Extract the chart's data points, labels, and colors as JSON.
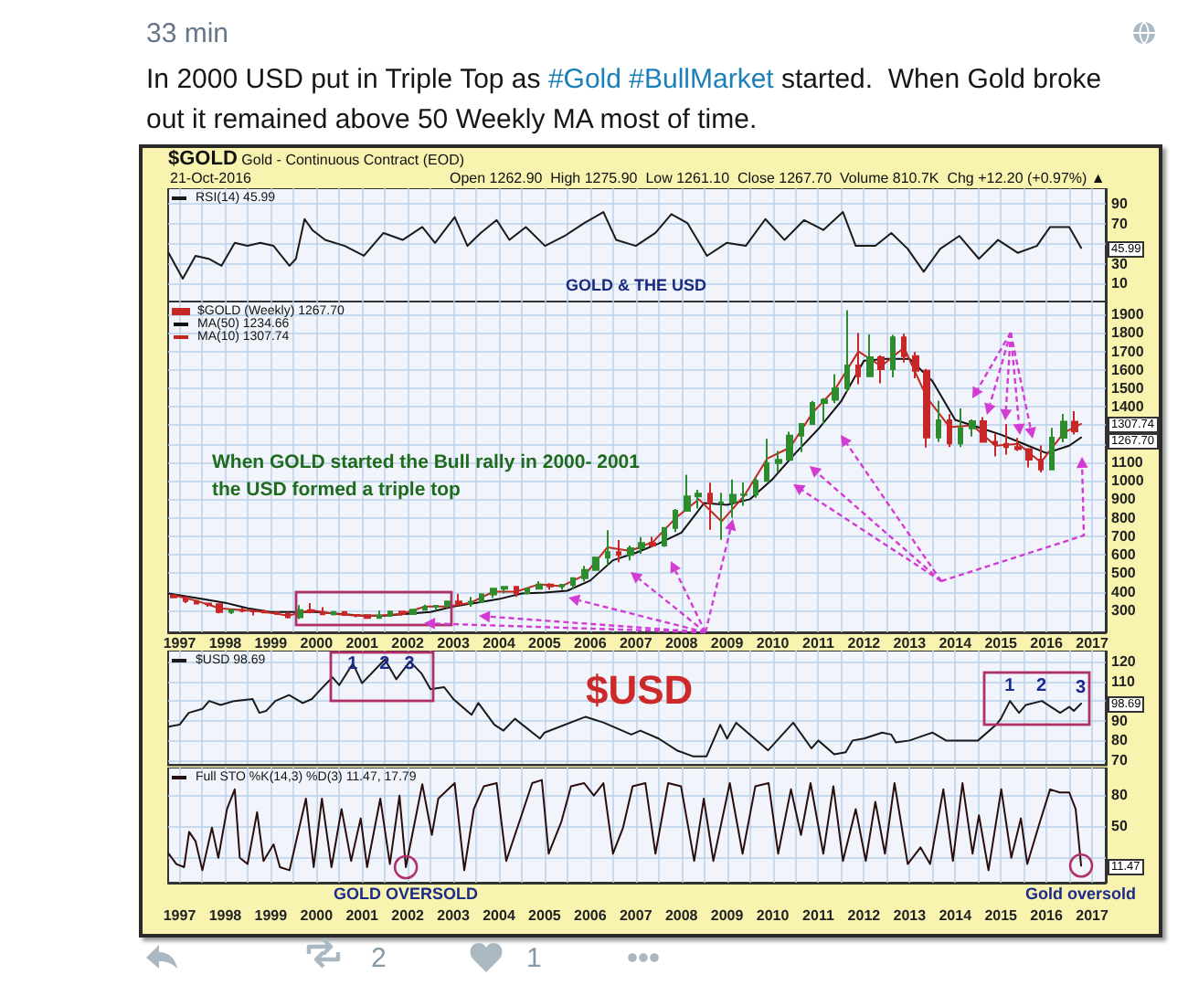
{
  "chart_data": [
    {
      "type": "line",
      "title": "In 2000 USD put in Triple Top as #Gold #BullMarket started.  When Gold broke out it remained above 50 Weekly MA most of time.",
      "subtitle": "$GOLD Gold - Continuous Contract (EOD)",
      "annotations": [
        "33 min",
        "21-Oct-2016",
        "Open 1262.90  High 1275.90  Low 1261.10  Close 1267.70  Volume 810.7K  Chg +12.20 (+0.97%) ▲",
        "GOLD & THE USD",
        "2",
        "1",
        "45.99"
      ],
      "series": [
        {
          "name": "RSI(14) 45.99",
          "color": "#1a1a1a",
          "x": [
            1996.76,
            1997.07,
            1997.35,
            1997.64,
            1997.92,
            1998.21,
            1998.49,
            1998.77,
            1999.06,
            1999.41,
            1999.55,
            1999.74,
            1999.91,
            2000.19,
            2000.62,
            2001.04,
            2001.47,
            2001.89,
            2002.32,
            2002.6,
            2003.03,
            2003.31,
            2003.6,
            2003.95,
            2004.23,
            2004.59,
            2005.01,
            2005.44,
            2005.87,
            2006.29,
            2006.57,
            2007.0,
            2007.43,
            2007.78,
            2008.13,
            2008.56,
            2008.99,
            2009.41,
            2009.84,
            2010.26,
            2010.69,
            2011.11,
            2011.54,
            2011.82,
            2012.25,
            2012.6,
            2012.96,
            2013.31,
            2013.67,
            2014.09,
            2014.52,
            2014.94,
            2015.37,
            2015.79,
            2016.08,
            2016.5,
            2016.76
          ],
          "values": [
            41,
            15,
            38,
            35,
            28,
            51,
            48,
            51,
            48,
            28,
            35,
            75,
            64,
            54,
            48,
            38,
            61,
            54,
            67,
            51,
            77,
            48,
            61,
            74,
            54,
            67,
            48,
            58,
            71,
            82,
            54,
            48,
            61,
            80,
            71,
            38,
            51,
            48,
            75,
            54,
            74,
            64,
            82,
            48,
            48,
            61,
            45,
            22,
            45,
            58,
            35,
            54,
            41,
            48,
            67,
            67,
            46
          ]
        }
      ],
      "xlim": [
        1996.75,
        2017.3
      ],
      "xticks": [
        1997,
        {
          "value": 1997.5,
          "label": null
        },
        1998,
        {
          "value": 1998.5,
          "label": null
        },
        1999,
        {
          "value": 1999.5,
          "label": null
        },
        2000,
        {
          "value": 2000.5,
          "label": null
        },
        2001,
        {
          "value": 2001.5,
          "label": null
        },
        2002,
        {
          "value": 2002.5,
          "label": null
        },
        2003,
        {
          "value": 2003.5,
          "label": null
        },
        2004,
        {
          "value": 2004.5,
          "label": null
        },
        2005,
        {
          "value": 2005.5,
          "label": null
        },
        2006,
        {
          "value": 2006.5,
          "label": null
        },
        2007,
        {
          "value": 2007.5,
          "label": null
        },
        2008,
        {
          "value": 2008.5,
          "label": null
        },
        2009,
        {
          "value": 2009.5,
          "label": null
        },
        2010,
        {
          "value": 2010.5,
          "label": null
        },
        2011,
        {
          "value": 2011.5,
          "label": null
        },
        2012,
        {
          "value": 2012.5,
          "label": null
        },
        2013,
        {
          "value": 2013.5,
          "label": null
        },
        2014,
        {
          "value": 2014.5,
          "label": null
        },
        2015,
        {
          "value": 2015.5,
          "label": null
        },
        2016,
        {
          "value": 2016.5,
          "label": null
        },
        2017
      ],
      "ylim": [
        -8,
        106
      ],
      "yticks": [
        10,
        30,
        {
          "value": 50,
          "label": null
        },
        70,
        90
      ],
      "grid": true,
      "legend": "top left",
      "tick_labels": "y"
    },
    {
      "type": "candlestick",
      "annotations": [
        "When GOLD started the Bull rally in 2000- 2001\nthe USD formed a triple top",
        "1267.70",
        "1307.74"
      ],
      "series": [
        {
          "name": "$GOLD (Weekly) 1267.70",
          "x": [
            1996.875,
            1997.125,
            1997.375,
            1997.625,
            1997.875,
            1998.125,
            1998.375,
            1998.625,
            1998.875,
            1999.125,
            1999.375,
            1999.625,
            1999.875,
            2000.125,
            2000.375,
            2000.625,
            2000.875,
            2001.125,
            2001.375,
            2001.625,
            2001.875,
            2002.125,
            2002.375,
            2002.625,
            2002.875,
            2003.125,
            2003.375,
            2003.625,
            2003.875,
            2004.125,
            2004.375,
            2004.625,
            2004.875,
            2005.125,
            2005.375,
            2005.625,
            2005.875,
            2006.125,
            2006.375,
            2006.625,
            2006.875,
            2007.125,
            2007.375,
            2007.625,
            2007.875,
            2008.125,
            2008.375,
            2008.625,
            2008.875,
            2009.125,
            2009.375,
            2009.625,
            2009.875,
            2010.125,
            2010.375,
            2010.625,
            2010.875,
            2011.125,
            2011.375,
            2011.625,
            2011.875,
            2012.125,
            2012.375,
            2012.625,
            2012.875,
            2013.125,
            2013.375,
            2013.625,
            2013.875,
            2014.125,
            2014.375,
            2014.625,
            2014.875,
            2015.125,
            2015.375,
            2015.625,
            2015.875,
            2016.125,
            2016.375,
            2016.625
          ],
          "ohlc": [
            [
              380,
              385,
              367,
              369
            ],
            [
              369,
              369,
              338,
              349
            ],
            [
              349,
              351,
              334,
              336
            ],
            [
              336,
              336,
              318,
              332
            ],
            [
              332,
              334,
              283,
              290
            ],
            [
              290,
              306,
              279,
              301
            ],
            [
              301,
              313,
              287,
              296
            ],
            [
              296,
              299,
              272,
              294
            ],
            [
              294,
              301,
              284,
              288
            ],
            [
              288,
              292,
              278,
              280
            ],
            [
              280,
              290,
              256,
              261
            ],
            [
              261,
              327,
              252,
              300
            ],
            [
              300,
              338,
              283,
              290
            ],
            [
              290,
              316,
              274,
              278
            ],
            [
              278,
              294,
              271,
              290
            ],
            [
              290,
              292,
              271,
              274
            ],
            [
              274,
              275,
              262,
              273
            ],
            [
              273,
              273,
              255,
              258
            ],
            [
              258,
              298,
              255,
              270
            ],
            [
              270,
              295,
              264,
              293
            ],
            [
              293,
              294,
              270,
              279
            ],
            [
              279,
              305,
              277,
              303
            ],
            [
              303,
              330,
              299,
              318
            ],
            [
              318,
              326,
              300,
              324
            ],
            [
              324,
              350,
              311,
              347
            ],
            [
              347,
              388,
              326,
              335
            ],
            [
              335,
              372,
              319,
              346
            ],
            [
              346,
              391,
              342,
              385
            ],
            [
              385,
              418,
              367,
              416
            ],
            [
              416,
              430,
              390,
              426
            ],
            [
              426,
              428,
              372,
              393
            ],
            [
              393,
              420,
              385,
              416
            ],
            [
              416,
              457,
              411,
              438
            ],
            [
              438,
              446,
              410,
              428
            ],
            [
              428,
              442,
              410,
              437
            ],
            [
              437,
              476,
              415,
              473
            ],
            [
              473,
              540,
              456,
              518
            ],
            [
              518,
              590,
              516,
              584
            ],
            [
              584,
              732,
              543,
              614
            ],
            [
              614,
              680,
              560,
              599
            ],
            [
              599,
              650,
              570,
              635
            ],
            [
              635,
              695,
              605,
              663
            ],
            [
              663,
              697,
              640,
              650
            ],
            [
              650,
              750,
              642,
              745
            ],
            [
              745,
              848,
              723,
              838
            ],
            [
              838,
              1033,
              838,
              916
            ],
            [
              916,
              951,
              850,
              930
            ],
            [
              930,
              990,
              735,
              880
            ],
            [
              880,
              935,
              681,
              884
            ],
            [
              884,
              1007,
              800,
              924
            ],
            [
              924,
              991,
              865,
              926
            ],
            [
              926,
              1020,
              908,
              1000
            ],
            [
              1000,
              1227,
              1000,
              1096
            ],
            [
              1096,
              1162,
              1044,
              1113
            ],
            [
              1113,
              1265,
              1110,
              1244
            ],
            [
              1244,
              1310,
              1155,
              1308
            ],
            [
              1308,
              1432,
              1308,
              1421
            ],
            [
              1421,
              1447,
              1308,
              1439
            ],
            [
              1439,
              1577,
              1420,
              1500
            ],
            [
              1500,
              1923,
              1480,
              1624
            ],
            [
              1624,
              1800,
              1523,
              1566
            ],
            [
              1566,
              1792,
              1565,
              1668
            ],
            [
              1668,
              1680,
              1527,
              1604
            ],
            [
              1604,
              1790,
              1560,
              1776
            ],
            [
              1776,
              1796,
              1640,
              1675
            ],
            [
              1675,
              1697,
              1555,
              1596
            ],
            [
              1596,
              1605,
              1180,
              1234
            ],
            [
              1234,
              1434,
              1211,
              1327
            ],
            [
              1327,
              1361,
              1182,
              1202
            ],
            [
              1202,
              1392,
              1182,
              1284
            ],
            [
              1284,
              1332,
              1240,
              1322
            ],
            [
              1322,
              1345,
              1206,
              1211
            ],
            [
              1211,
              1255,
              1132,
              1200
            ],
            [
              1200,
              1307,
              1142,
              1183
            ],
            [
              1183,
              1232,
              1162,
              1172
            ],
            [
              1172,
              1173,
              1072,
              1114
            ],
            [
              1114,
              1191,
              1045,
              1061
            ],
            [
              1061,
              1287,
              1061,
              1233
            ],
            [
              1233,
              1362,
              1208,
              1320
            ],
            [
              1320,
              1377,
              1251,
              1267.7
            ]
          ],
          "colors": [
            "#c62828",
            "#c62828",
            "#c62828",
            "#c62828",
            "#c62828",
            "#2e8b2e",
            "#c62828",
            "#c62828",
            "#c62828",
            "#c62828",
            "#c62828",
            "#2e8b2e",
            "#c62828",
            "#c62828",
            "#2e8b2e",
            "#c62828",
            "#c62828",
            "#c62828",
            "#2e8b2e",
            "#2e8b2e",
            "#c62828",
            "#2e8b2e",
            "#2e8b2e",
            "#2e8b2e",
            "#2e8b2e",
            "#c62828",
            "#2e8b2e",
            "#2e8b2e",
            "#2e8b2e",
            "#2e8b2e",
            "#c62828",
            "#2e8b2e",
            "#2e8b2e",
            "#c62828",
            "#2e8b2e",
            "#2e8b2e",
            "#2e8b2e",
            "#2e8b2e",
            "#2e8b2e",
            "#c62828",
            "#2e8b2e",
            "#2e8b2e",
            "#c62828",
            "#2e8b2e",
            "#2e8b2e",
            "#2e8b2e",
            "#2e8b2e",
            "#c62828",
            "#2e8b2e",
            "#2e8b2e",
            "#2e8b2e",
            "#2e8b2e",
            "#2e8b2e",
            "#2e8b2e",
            "#2e8b2e",
            "#2e8b2e",
            "#2e8b2e",
            "#2e8b2e",
            "#2e8b2e",
            "#2e8b2e",
            "#c62828",
            "#2e8b2e",
            "#c62828",
            "#2e8b2e",
            "#c62828",
            "#c62828",
            "#c62828",
            "#2e8b2e",
            "#c62828",
            "#2e8b2e",
            "#2e8b2e",
            "#c62828",
            "#c62828",
            "#c62828",
            "#c62828",
            "#c62828",
            "#c62828",
            "#2e8b2e",
            "#2e8b2e",
            "#c62828"
          ]
        },
        {
          "name": "MA(50) 1234.66",
          "type": "line",
          "color": "#111111",
          "x": [
            1996.76,
            1997.5,
            1998,
            1998.5,
            1999,
            1999.5,
            2000,
            2000.5,
            2001,
            2001.5,
            2002,
            2002.5,
            2003,
            2003.5,
            2004,
            2004.5,
            2005,
            2005.5,
            2006,
            2006.5,
            2007,
            2007.5,
            2008,
            2008.5,
            2009,
            2009.5,
            2010,
            2010.5,
            2011,
            2011.5,
            2012,
            2012.5,
            2013,
            2013.5,
            2014,
            2014.5,
            2015,
            2015.5,
            2016,
            2016.5,
            2016.76
          ],
          "values": [
            390,
            360,
            340,
            310,
            290,
            290,
            290,
            280,
            270,
            270,
            280,
            290,
            320,
            340,
            360,
            390,
            395,
            405,
            460,
            570,
            610,
            660,
            720,
            880,
            870,
            900,
            1010,
            1150,
            1280,
            1430,
            1650,
            1660,
            1660,
            1540,
            1330,
            1290,
            1250,
            1200,
            1150,
            1190,
            1234.66
          ]
        },
        {
          "name": "MA(10) 1307.74",
          "type": "line",
          "color": "#c0281e",
          "x": [
            1996.88,
            1997.38,
            1997.88,
            1998.38,
            1998.88,
            1999.38,
            1999.88,
            2000.38,
            2000.88,
            2001.38,
            2001.88,
            2002.38,
            2002.88,
            2003.38,
            2003.88,
            2004.38,
            2004.88,
            2005.38,
            2005.88,
            2006.38,
            2006.88,
            2007.38,
            2007.88,
            2008.38,
            2008.88,
            2009.38,
            2009.88,
            2010.38,
            2010.88,
            2011.38,
            2011.88,
            2012.38,
            2012.88,
            2013.38,
            2013.88,
            2014.38,
            2014.88,
            2015.38,
            2015.88,
            2016.38,
            2016.76
          ],
          "values": [
            380,
            350,
            310,
            300,
            290,
            270,
            300,
            280,
            270,
            270,
            280,
            320,
            320,
            340,
            400,
            400,
            440,
            430,
            490,
            640,
            620,
            670,
            800,
            900,
            780,
            920,
            1120,
            1180,
            1370,
            1500,
            1700,
            1620,
            1720,
            1450,
            1290,
            1300,
            1190,
            1200,
            1100,
            1260,
            1307.74
          ]
        }
      ],
      "xlim": [
        1996.75,
        2017.3
      ],
      "xticks": [
        1997,
        {
          "value": 1997.5,
          "label": null
        },
        1998,
        {
          "value": 1998.5,
          "label": null
        },
        1999,
        {
          "value": 1999.5,
          "label": null
        },
        2000,
        {
          "value": 2000.5,
          "label": null
        },
        2001,
        {
          "value": 2001.5,
          "label": null
        },
        2002,
        {
          "value": 2002.5,
          "label": null
        },
        2003,
        {
          "value": 2003.5,
          "label": null
        },
        2004,
        {
          "value": 2004.5,
          "label": null
        },
        2005,
        {
          "value": 2005.5,
          "label": null
        },
        2006,
        {
          "value": 2006.5,
          "label": null
        },
        2007,
        {
          "value": 2007.5,
          "label": null
        },
        2008,
        {
          "value": 2008.5,
          "label": null
        },
        2009,
        {
          "value": 2009.5,
          "label": null
        },
        2010,
        {
          "value": 2010.5,
          "label": null
        },
        2011,
        {
          "value": 2011.5,
          "label": null
        },
        2012,
        {
          "value": 2012.5,
          "label": null
        },
        2013,
        {
          "value": 2013.5,
          "label": null
        },
        2014,
        {
          "value": 2014.5,
          "label": null
        },
        2015,
        {
          "value": 2015.5,
          "label": null
        },
        2016,
        {
          "value": 2016.5,
          "label": null
        },
        2017
      ],
      "ylim": [
        180,
        1970
      ],
      "yticks": [
        300,
        400,
        500,
        600,
        700,
        800,
        900,
        1000,
        1100,
        {
          "value": 1200,
          "label": null
        },
        {
          "value": 1300,
          "label": null
        },
        1400,
        1500,
        1600,
        1700,
        1800,
        1900
      ],
      "grid": true,
      "legend": "top left"
    },
    {
      "type": "line",
      "annotations": [
        "$USD",
        "98.69",
        {
          "text": "1",
          "x": 2000.8,
          "y": 119
        },
        {
          "text": "2",
          "x": 2001.5,
          "y": 121
        },
        {
          "text": "3",
          "x": 2002.05,
          "y": 120
        },
        {
          "text": "1",
          "x": 2015.2,
          "y": 100
        },
        {
          "text": "2",
          "x": 2015.9,
          "y": 100
        },
        {
          "text": "3",
          "x": 2016.76,
          "y": 98.69
        }
      ],
      "series": [
        {
          "name": "$USD 98.69",
          "color": "#1a1a1a",
          "x": [
            1996.76,
            1997.0,
            1997.2,
            1997.5,
            1997.65,
            1997.9,
            1998.2,
            1998.6,
            1998.75,
            1998.9,
            1999.1,
            1999.4,
            1999.7,
            1999.9,
            2000.1,
            2000.35,
            2000.5,
            2000.8,
            2001.0,
            2001.5,
            2001.75,
            2002.05,
            2002.3,
            2002.5,
            2002.8,
            2003.0,
            2003.4,
            2003.55,
            2003.9,
            2004.1,
            2004.35,
            2004.9,
            2005.0,
            2005.9,
            2006.3,
            2006.9,
            2007.1,
            2007.5,
            2007.9,
            2008.25,
            2008.55,
            2008.85,
            2009.0,
            2009.2,
            2009.9,
            2010.45,
            2010.85,
            2011.0,
            2011.35,
            2011.6,
            2011.75,
            2012.0,
            2012.4,
            2012.6,
            2012.7,
            2013.0,
            2013.5,
            2013.8,
            2014.3,
            2014.5,
            2014.9,
            2015.0,
            2015.2,
            2015.4,
            2015.55,
            2015.9,
            2016.3,
            2016.5,
            2016.6,
            2016.76
          ],
          "values": [
            87,
            88,
            94,
            96,
            100,
            98,
            100,
            101,
            94,
            95,
            100,
            103,
            99,
            101,
            106,
            112,
            108,
            119,
            109,
            121,
            111,
            120,
            114,
            106,
            107,
            101,
            93,
            99,
            88,
            85,
            91,
            81,
            84,
            92,
            89,
            83,
            85,
            81,
            75,
            72,
            72,
            88,
            81,
            89,
            75,
            89,
            76,
            80,
            73,
            74,
            80,
            81,
            84,
            83,
            79,
            80,
            84,
            80,
            80,
            80,
            88,
            91,
            100,
            94,
            98,
            100,
            94,
            97,
            95,
            98.69
          ]
        }
      ],
      "xlim": [
        1996.75,
        2017.3
      ],
      "xticks": [
        1997,
        {
          "value": 1997.5,
          "label": null
        },
        1998,
        {
          "value": 1998.5,
          "label": null
        },
        1999,
        {
          "value": 1999.5,
          "label": null
        },
        2000,
        {
          "value": 2000.5,
          "label": null
        },
        2001,
        {
          "value": 2001.5,
          "label": null
        },
        2002,
        {
          "value": 2002.5,
          "label": null
        },
        2003,
        {
          "value": 2003.5,
          "label": null
        },
        2004,
        {
          "value": 2004.5,
          "label": null
        },
        2005,
        {
          "value": 2005.5,
          "label": null
        },
        2006,
        {
          "value": 2006.5,
          "label": null
        },
        2007,
        {
          "value": 2007.5,
          "label": null
        },
        2008,
        {
          "value": 2008.5,
          "label": null
        },
        2009,
        {
          "value": 2009.5,
          "label": null
        },
        2010,
        {
          "value": 2010.5,
          "label": null
        },
        2011,
        {
          "value": 2011.5,
          "label": null
        },
        2012,
        {
          "value": 2012.5,
          "label": null
        },
        2013,
        {
          "value": 2013.5,
          "label": null
        },
        2014,
        {
          "value": 2014.5,
          "label": null
        },
        2015,
        {
          "value": 2015.5,
          "label": null
        },
        2016,
        {
          "value": 2016.5,
          "label": null
        },
        2017
      ],
      "ylim": [
        67.5,
        125.5
      ],
      "yticks": [
        70,
        80,
        90,
        {
          "value": 100,
          "label": null
        },
        110,
        120
      ],
      "grid": true,
      "legend": "top left",
      "tick_labels": "y"
    },
    {
      "type": "line",
      "annotations": [
        "11.47",
        {
          "text": "GOLD OVERSOLD",
          "x": 2001.96,
          "y": 10
        },
        {
          "text": "Gold oversold",
          "x": 2016.76,
          "y": 11.47
        }
      ],
      "series": [
        {
          "name": "Full STO %K(14,3) %D(3) 11.47, 17.79",
          "color": "#2a0d0d",
          "x": [
            1996.76,
            1996.93,
            1997.1,
            1997.21,
            1997.35,
            1997.5,
            1997.71,
            1997.85,
            1998.04,
            1998.21,
            1998.32,
            1998.49,
            1998.7,
            1998.84,
            1999.06,
            1999.2,
            1999.41,
            1999.77,
            1999.94,
            2000.12,
            2000.33,
            2000.55,
            2000.76,
            2000.97,
            2001.11,
            2001.4,
            2001.61,
            2001.82,
            2001.96,
            2002.32,
            2002.53,
            2002.67,
            2003.03,
            2003.24,
            2003.45,
            2003.67,
            2003.95,
            2004.16,
            2004.45,
            2004.73,
            2004.94,
            2005.09,
            2005.37,
            2005.58,
            2005.87,
            2006.08,
            2006.29,
            2006.5,
            2006.72,
            2006.93,
            2007.21,
            2007.43,
            2007.71,
            2007.99,
            2008.28,
            2008.49,
            2008.7,
            2009.06,
            2009.34,
            2009.62,
            2009.91,
            2010.12,
            2010.4,
            2010.62,
            2010.83,
            2011.11,
            2011.33,
            2011.54,
            2011.82,
            2012.04,
            2012.25,
            2012.46,
            2012.67,
            2012.96,
            2013.24,
            2013.45,
            2013.74,
            2013.95,
            2014.16,
            2014.38,
            2014.52,
            2014.73,
            2015.01,
            2015.23,
            2015.44,
            2015.58,
            2015.86,
            2016.08,
            2016.29,
            2016.5,
            2016.64,
            2016.76
          ],
          "values": [
            23,
            13,
            10,
            44,
            35,
            7,
            48,
            19,
            66,
            85,
            19,
            13,
            63,
            16,
            32,
            10,
            7,
            76,
            10,
            76,
            10,
            66,
            16,
            57,
            10,
            76,
            13,
            79,
            10,
            90,
            41,
            76,
            91,
            7,
            66,
            88,
            91,
            16,
            54,
            91,
            94,
            23,
            54,
            88,
            91,
            79,
            91,
            23,
            48,
            88,
            91,
            23,
            91,
            88,
            16,
            76,
            16,
            91,
            23,
            88,
            91,
            23,
            85,
            41,
            91,
            23,
            88,
            16,
            66,
            16,
            73,
            23,
            91,
            13,
            29,
            13,
            85,
            16,
            91,
            23,
            60,
            7,
            85,
            19,
            57,
            13,
            54,
            85,
            82,
            82,
            66,
            11.47
          ]
        }
      ],
      "xlim": [
        1996.75,
        2017.3
      ],
      "xticks": [
        1997,
        {
          "value": 1997.5,
          "label": null
        },
        1998,
        {
          "value": 1998.5,
          "label": null
        },
        1999,
        {
          "value": 1999.5,
          "label": null
        },
        2000,
        {
          "value": 2000.5,
          "label": null
        },
        2001,
        {
          "value": 2001.5,
          "label": null
        },
        2002,
        {
          "value": 2002.5,
          "label": null
        },
        2003,
        {
          "value": 2003.5,
          "label": null
        },
        2004,
        {
          "value": 2004.5,
          "label": null
        },
        2005,
        {
          "value": 2005.5,
          "label": null
        },
        2006,
        {
          "value": 2006.5,
          "label": null
        },
        2007,
        {
          "value": 2007.5,
          "label": null
        },
        2008,
        {
          "value": 2008.5,
          "label": null
        },
        2009,
        {
          "value": 2009.5,
          "label": null
        },
        2010,
        {
          "value": 2010.5,
          "label": null
        },
        2011,
        {
          "value": 2011.5,
          "label": null
        },
        2012,
        {
          "value": 2012.5,
          "label": null
        },
        2013,
        {
          "value": 2013.5,
          "label": null
        },
        2014,
        {
          "value": 2014.5,
          "label": null
        },
        2015,
        {
          "value": 2015.5,
          "label": null
        },
        2016,
        {
          "value": 2016.5,
          "label": null
        },
        2017
      ],
      "ylim": [
        -5,
        106
      ],
      "yticks": [
        {
          "value": 20,
          "label": null
        },
        50,
        80
      ],
      "grid": true,
      "legend": "top left"
    }
  ]
}
